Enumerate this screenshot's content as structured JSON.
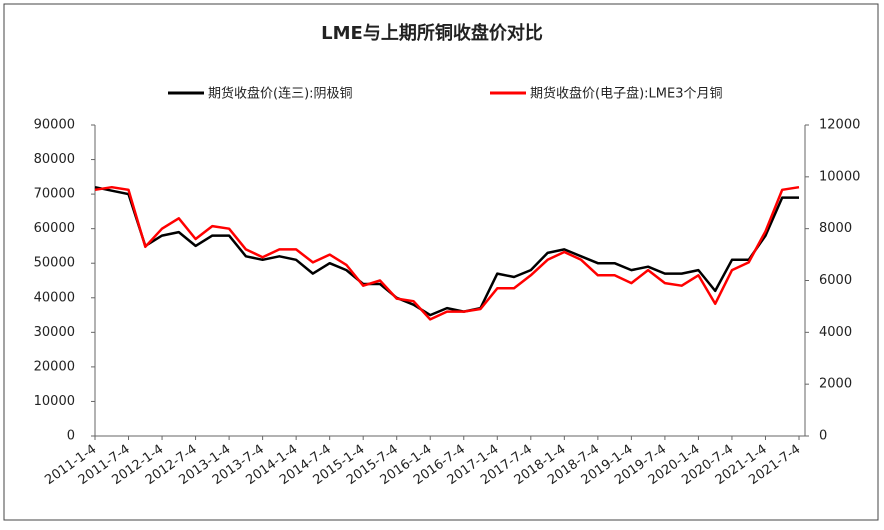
{
  "chart_data": {
    "type": "line",
    "title": "LME与上期所铜收盘价对比",
    "categories": [
      "2011-1-4",
      null,
      "2011-7-4",
      null,
      "2012-1-4",
      null,
      "2012-7-4",
      null,
      "2013-1-4",
      null,
      "2013-7-4",
      null,
      "2014-1-4",
      null,
      "2014-7-4",
      null,
      "2015-1-4",
      null,
      "2015-7-4",
      null,
      "2016-1-4",
      null,
      "2016-7-4",
      null,
      "2017-1-4",
      null,
      "2017-7-4",
      null,
      "2018-1-4",
      null,
      "2018-7-4",
      null,
      "2019-1-4",
      null,
      "2019-7-4",
      null,
      "2020-1-4",
      null,
      "2020-7-4",
      null,
      "2021-1-4",
      null,
      "2021-7-4"
    ],
    "series": [
      {
        "name": "期货收盘价(连三):阴极铜",
        "color": "#000000",
        "values": [
          72000,
          71000,
          70000,
          55000,
          58000,
          59000,
          55000,
          58000,
          58000,
          52000,
          51000,
          52000,
          51000,
          47000,
          50000,
          48000,
          44000,
          44000,
          40000,
          38000,
          35000,
          37000,
          36000,
          37000,
          47000,
          46000,
          48000,
          53000,
          54000,
          52000,
          50000,
          50000,
          48000,
          49000,
          47000,
          47000,
          48000,
          42000,
          51000,
          51000,
          58000,
          69000,
          69000
        ]
      },
      {
        "name": "期货收盘价(电子盘):LME3个月铜",
        "color": "#ff0000",
        "axis": "y2",
        "values": [
          9500,
          9600,
          9500,
          7300,
          8000,
          8400,
          7600,
          8100,
          8000,
          7200,
          6900,
          7200,
          7200,
          6700,
          7000,
          6600,
          5800,
          6000,
          5300,
          5200,
          4500,
          4800,
          4800,
          4900,
          5700,
          5700,
          6200,
          6800,
          7100,
          6800,
          6200,
          6200,
          5900,
          6400,
          5900,
          5800,
          6200,
          5100,
          6400,
          6700,
          7900,
          9500,
          9600
        ]
      }
    ],
    "ylim": [
      0,
      90000
    ],
    "yticks": [
      0,
      10000,
      20000,
      30000,
      40000,
      50000,
      60000,
      70000,
      80000,
      90000
    ],
    "y2lim": [
      0,
      12000
    ],
    "y2ticks": [
      0,
      2000,
      4000,
      6000,
      8000,
      10000,
      12000
    ]
  }
}
